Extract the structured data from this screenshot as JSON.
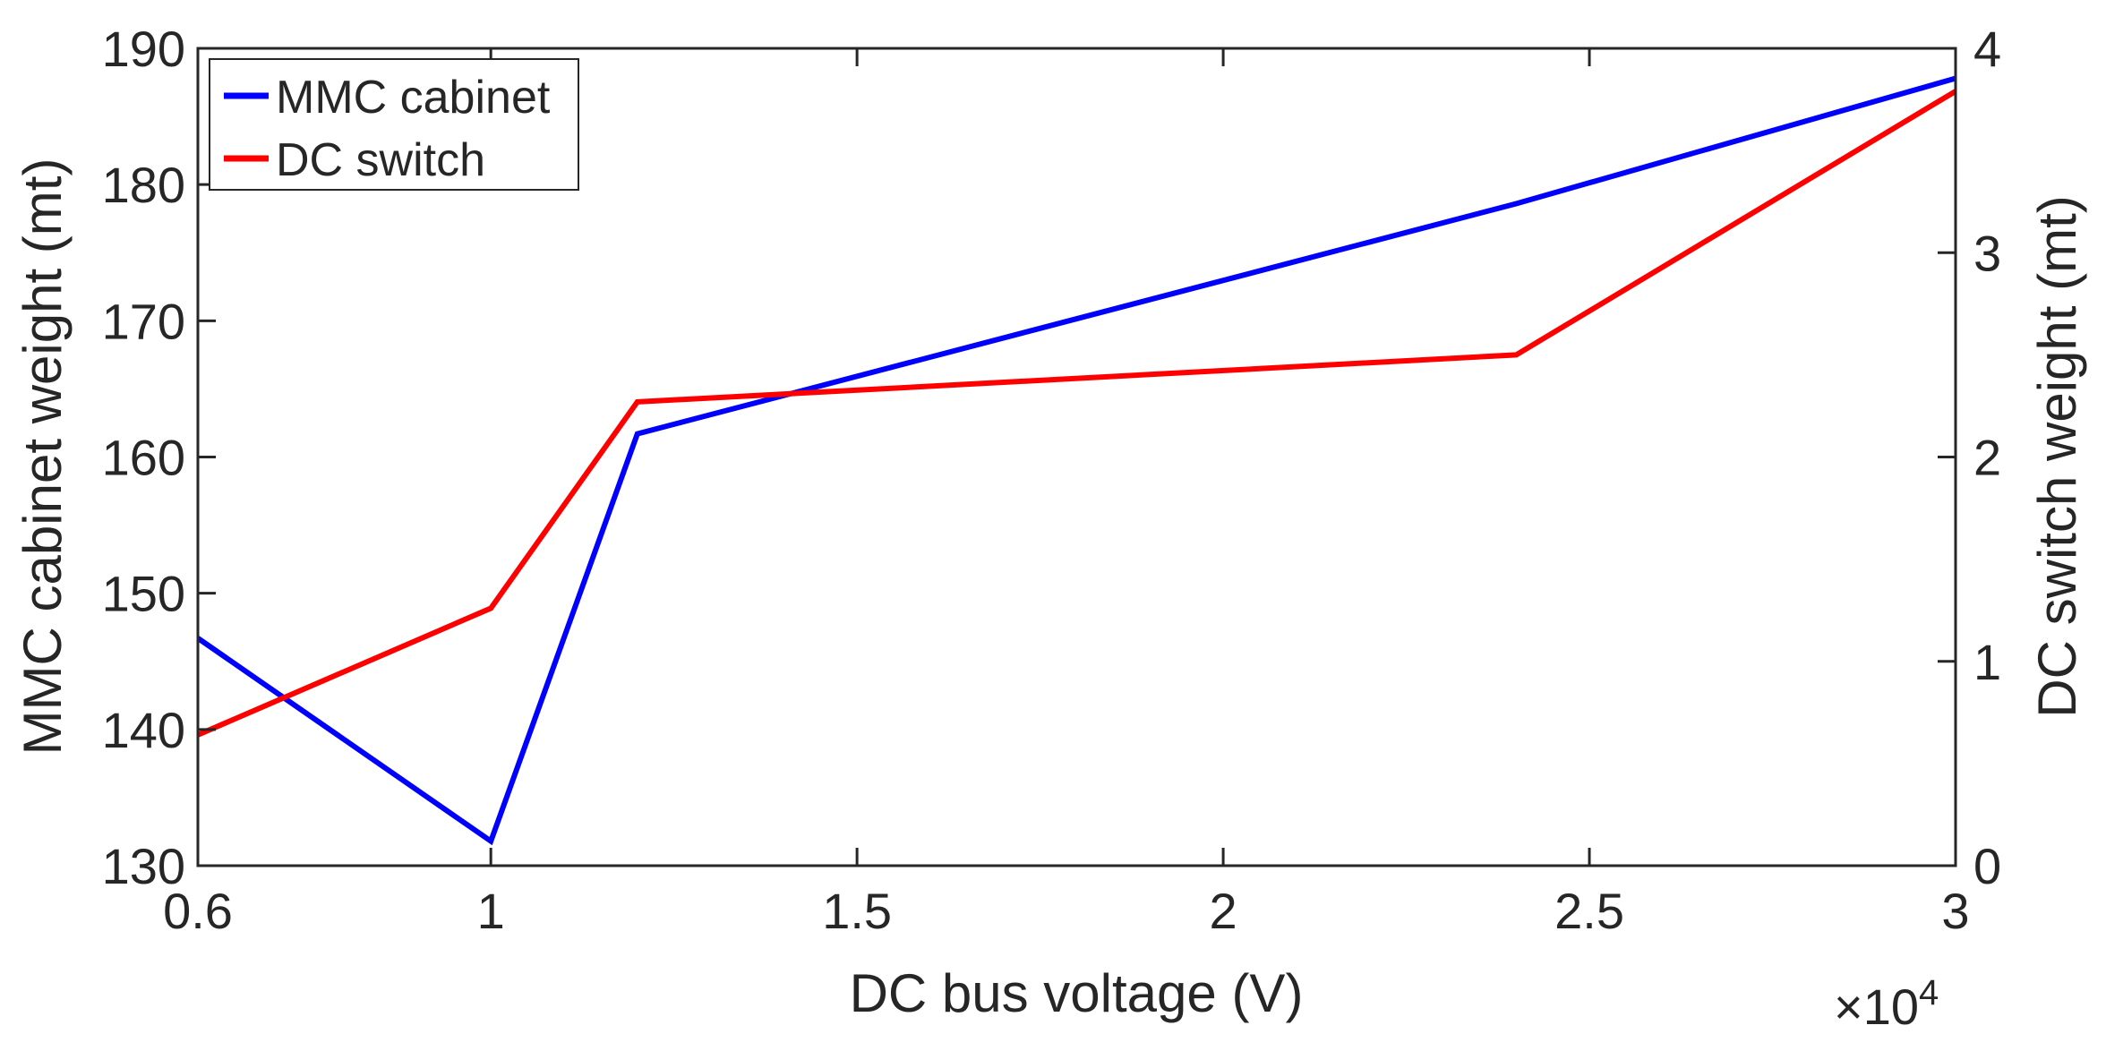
{
  "chart_data": {
    "type": "line",
    "xlabel": "DC bus voltage (V)",
    "ylabel_left": "MMC cabinet weight (mt)",
    "ylabel_right": "DC switch weight (mt)",
    "x_multiplier_label": "×10",
    "x_multiplier_exponent": "4",
    "xlim": [
      0.6,
      3
    ],
    "xticks": [
      0.6,
      1,
      1.5,
      2,
      2.5,
      3
    ],
    "xtick_labels": [
      "0.6",
      "1",
      "1.5",
      "2",
      "2.5",
      "3"
    ],
    "ylim_left": [
      130,
      190
    ],
    "yticks_left": [
      130,
      140,
      150,
      160,
      170,
      180,
      190
    ],
    "ytick_labels_left": [
      "130",
      "140",
      "150",
      "160",
      "170",
      "180",
      "190"
    ],
    "ylim_right": [
      0,
      4
    ],
    "yticks_right": [
      0,
      1,
      2,
      3,
      4
    ],
    "ytick_labels_right": [
      "0",
      "1",
      "2",
      "3",
      "4"
    ],
    "grid": false,
    "legend_position": "top-left",
    "series": [
      {
        "name": "MMC cabinet",
        "axis": "left",
        "color": "#0000ff",
        "x": [
          0.6,
          1.0,
          1.2,
          2.4,
          3.0
        ],
        "y": [
          146.7,
          131.8,
          161.7,
          178.6,
          187.8
        ]
      },
      {
        "name": "DC switch",
        "axis": "right",
        "color": "#ff0000",
        "x": [
          0.6,
          1.0,
          1.2,
          2.4,
          3.0
        ],
        "y": [
          0.64,
          1.26,
          2.27,
          2.5,
          3.79
        ]
      }
    ]
  }
}
